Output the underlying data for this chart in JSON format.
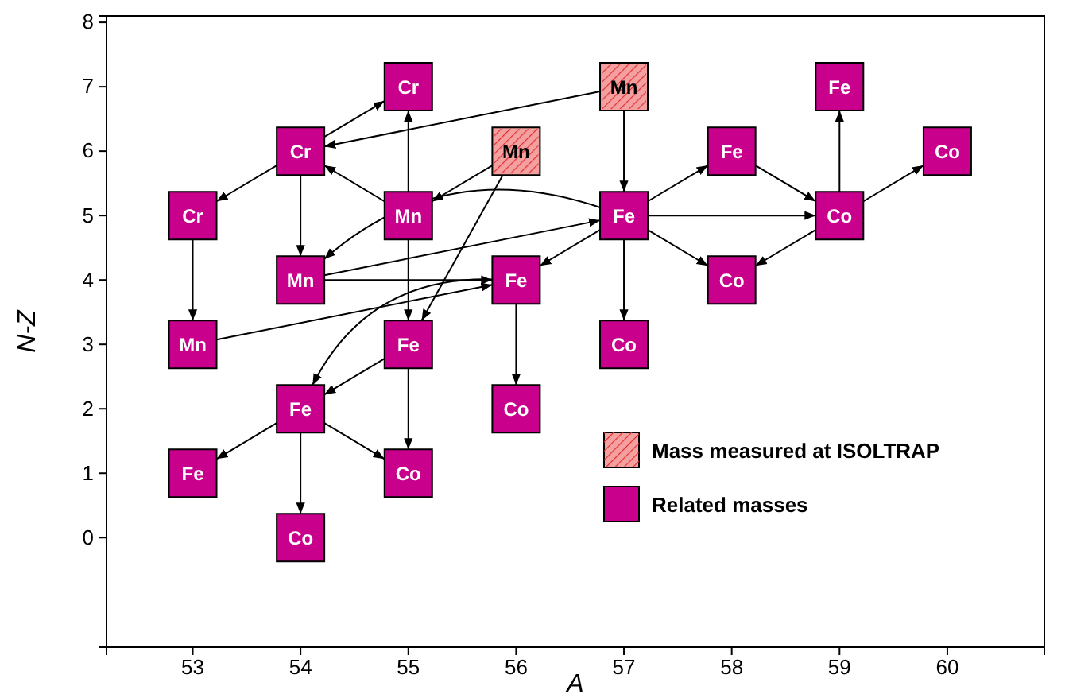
{
  "chart_data": {
    "type": "scatter",
    "xlabel": "A",
    "ylabel": "N-Z",
    "xlim": [
      52.2,
      60.9
    ],
    "ylim": [
      -1.7,
      8.1
    ],
    "xticks": [
      53,
      54,
      55,
      56,
      57,
      58,
      59,
      60
    ],
    "yticks": [
      0,
      1,
      2,
      3,
      4,
      5,
      6,
      7,
      8
    ],
    "marker": "square",
    "legend": "bottom right",
    "grid": false,
    "series": [
      {
        "name": "Mass measured at ISOLTRAP",
        "color": "#f4a0a0",
        "x": [
          56,
          57
        ],
        "values": [
          6,
          7
        ]
      },
      {
        "name": "Related masses",
        "color": "#c8008c",
        "x": [
          53,
          53,
          53,
          54,
          54,
          54,
          54,
          55,
          55,
          55,
          55,
          56,
          56,
          57,
          57,
          58,
          58,
          59,
          59,
          60
        ],
        "values": [
          5,
          3,
          1,
          6,
          4,
          2,
          0,
          7,
          5,
          3,
          1,
          4,
          2,
          5,
          3,
          6,
          4,
          5,
          7,
          6
        ]
      }
    ],
    "annotations": [
      {
        "text": "Mn",
        "x": 56,
        "y": 6
      },
      {
        "text": "Mn",
        "x": 57,
        "y": 7
      },
      {
        "text": "Cr",
        "x": 53,
        "y": 5
      },
      {
        "text": "Mn",
        "x": 53,
        "y": 3
      },
      {
        "text": "Fe",
        "x": 53,
        "y": 1
      },
      {
        "text": "Cr",
        "x": 54,
        "y": 6
      },
      {
        "text": "Mn",
        "x": 54,
        "y": 4
      },
      {
        "text": "Fe",
        "x": 54,
        "y": 2
      },
      {
        "text": "Co",
        "x": 54,
        "y": 0
      },
      {
        "text": "Cr",
        "x": 55,
        "y": 7
      },
      {
        "text": "Mn",
        "x": 55,
        "y": 5
      },
      {
        "text": "Fe",
        "x": 55,
        "y": 3
      },
      {
        "text": "Co",
        "x": 55,
        "y": 1
      },
      {
        "text": "Fe",
        "x": 56,
        "y": 4
      },
      {
        "text": "Co",
        "x": 56,
        "y": 2
      },
      {
        "text": "Fe",
        "x": 57,
        "y": 5
      },
      {
        "text": "Co",
        "x": 57,
        "y": 3
      },
      {
        "text": "Fe",
        "x": 58,
        "y": 6
      },
      {
        "text": "Co",
        "x": 58,
        "y": 4
      },
      {
        "text": "Co",
        "x": 59,
        "y": 5
      },
      {
        "text": "Fe",
        "x": 59,
        "y": 7
      },
      {
        "text": "Co",
        "x": 60,
        "y": 6
      }
    ]
  }
}
